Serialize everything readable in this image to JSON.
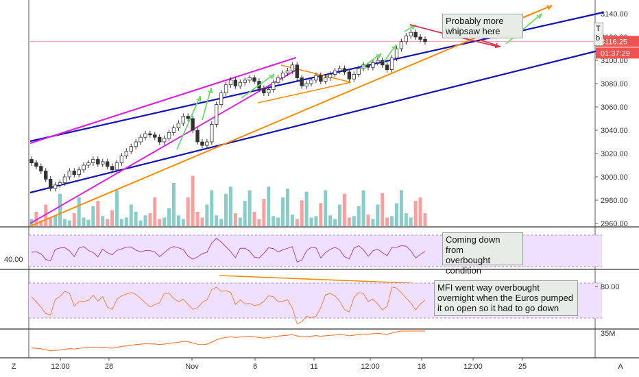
{
  "chart_data": {
    "type": "candlestick",
    "instrument_note": "S&P 500 futures style price chart with indicators",
    "price_axis": {
      "ticks": [
        "3140.00",
        "3120.00",
        "3100.00",
        "3080.00",
        "3060.00",
        "3040.00",
        "3020.00",
        "3000.00",
        "2980.00",
        "2960.00"
      ],
      "ylim": [
        2958,
        3146
      ]
    },
    "x_ticks": [
      "12:00",
      "28",
      "Nov",
      "6",
      "11",
      "12:00",
      "18",
      "12:00",
      "25"
    ],
    "last_price_label": "3116.25",
    "countdown_label": "01:37:29",
    "colors": {
      "up": "#26a69a",
      "down": "#ef5350",
      "candle_fill": "#fff",
      "candle_edge": "#333",
      "blue_channel": "#1010c0",
      "magenta": "#e020e0",
      "orange": "#ff8c00",
      "green_arrow": "#66dd66",
      "red_arrow": "#e03050",
      "rsi": "#b040d0",
      "mfi": "#ff7f3f",
      "obv": "#ff7f3f",
      "band": "#f0e0ff"
    },
    "closes": [
      3012,
      3009,
      3005,
      2998,
      2990,
      2993,
      2995,
      3000,
      3005,
      3002,
      3006,
      3010,
      3012,
      3015,
      3011,
      3013,
      3009,
      3006,
      3012,
      3018,
      3022,
      3026,
      3030,
      3034,
      3037,
      3036,
      3034,
      3030,
      3033,
      3038,
      3042,
      3046,
      3052,
      3050,
      3040,
      3030,
      3027,
      3030,
      3045,
      3062,
      3072,
      3079,
      3083,
      3078,
      3081,
      3083,
      3085,
      3082,
      3076,
      3072,
      3075,
      3081,
      3085,
      3089,
      3091,
      3096,
      3085,
      3078,
      3080,
      3083,
      3087,
      3082,
      3085,
      3088,
      3091,
      3093,
      3090,
      3084,
      3088,
      3093,
      3096,
      3094,
      3098,
      3100,
      3096,
      3092,
      3102,
      3110,
      3116,
      3121,
      3124,
      3120,
      3118,
      3116
    ],
    "volumes": [
      10,
      20,
      8,
      30,
      12,
      15,
      45,
      10,
      8,
      18,
      40,
      12,
      9,
      28,
      35,
      14,
      10,
      22,
      50,
      10,
      12,
      30,
      20,
      8,
      15,
      18,
      40,
      10,
      12,
      25,
      60,
      15,
      10,
      40,
      70,
      20,
      12,
      30,
      50,
      15,
      10,
      45,
      55,
      18,
      12,
      35,
      50,
      20,
      10,
      38,
      55,
      14,
      12,
      40,
      52,
      16,
      10,
      36,
      48,
      12,
      14,
      32,
      50,
      15,
      10,
      30,
      45,
      12,
      14,
      28,
      50,
      16,
      10,
      30,
      46,
      12,
      14,
      32,
      50,
      18,
      12,
      35,
      40,
      18
    ],
    "rsi_label": "40.00",
    "mfi_label": "80.00",
    "obv_label": "35M",
    "annotations": [
      {
        "text": "Probably more\nwhipsaw here"
      },
      {
        "text": "Coming down from\noverbought\ncondition"
      },
      {
        "text": "MFI went way overbought\novernight when the Euros pumped\nit on open so it had to go down"
      }
    ],
    "corner_left": "Z",
    "corner_right": "A",
    "legend_stub": "T\nb"
  }
}
